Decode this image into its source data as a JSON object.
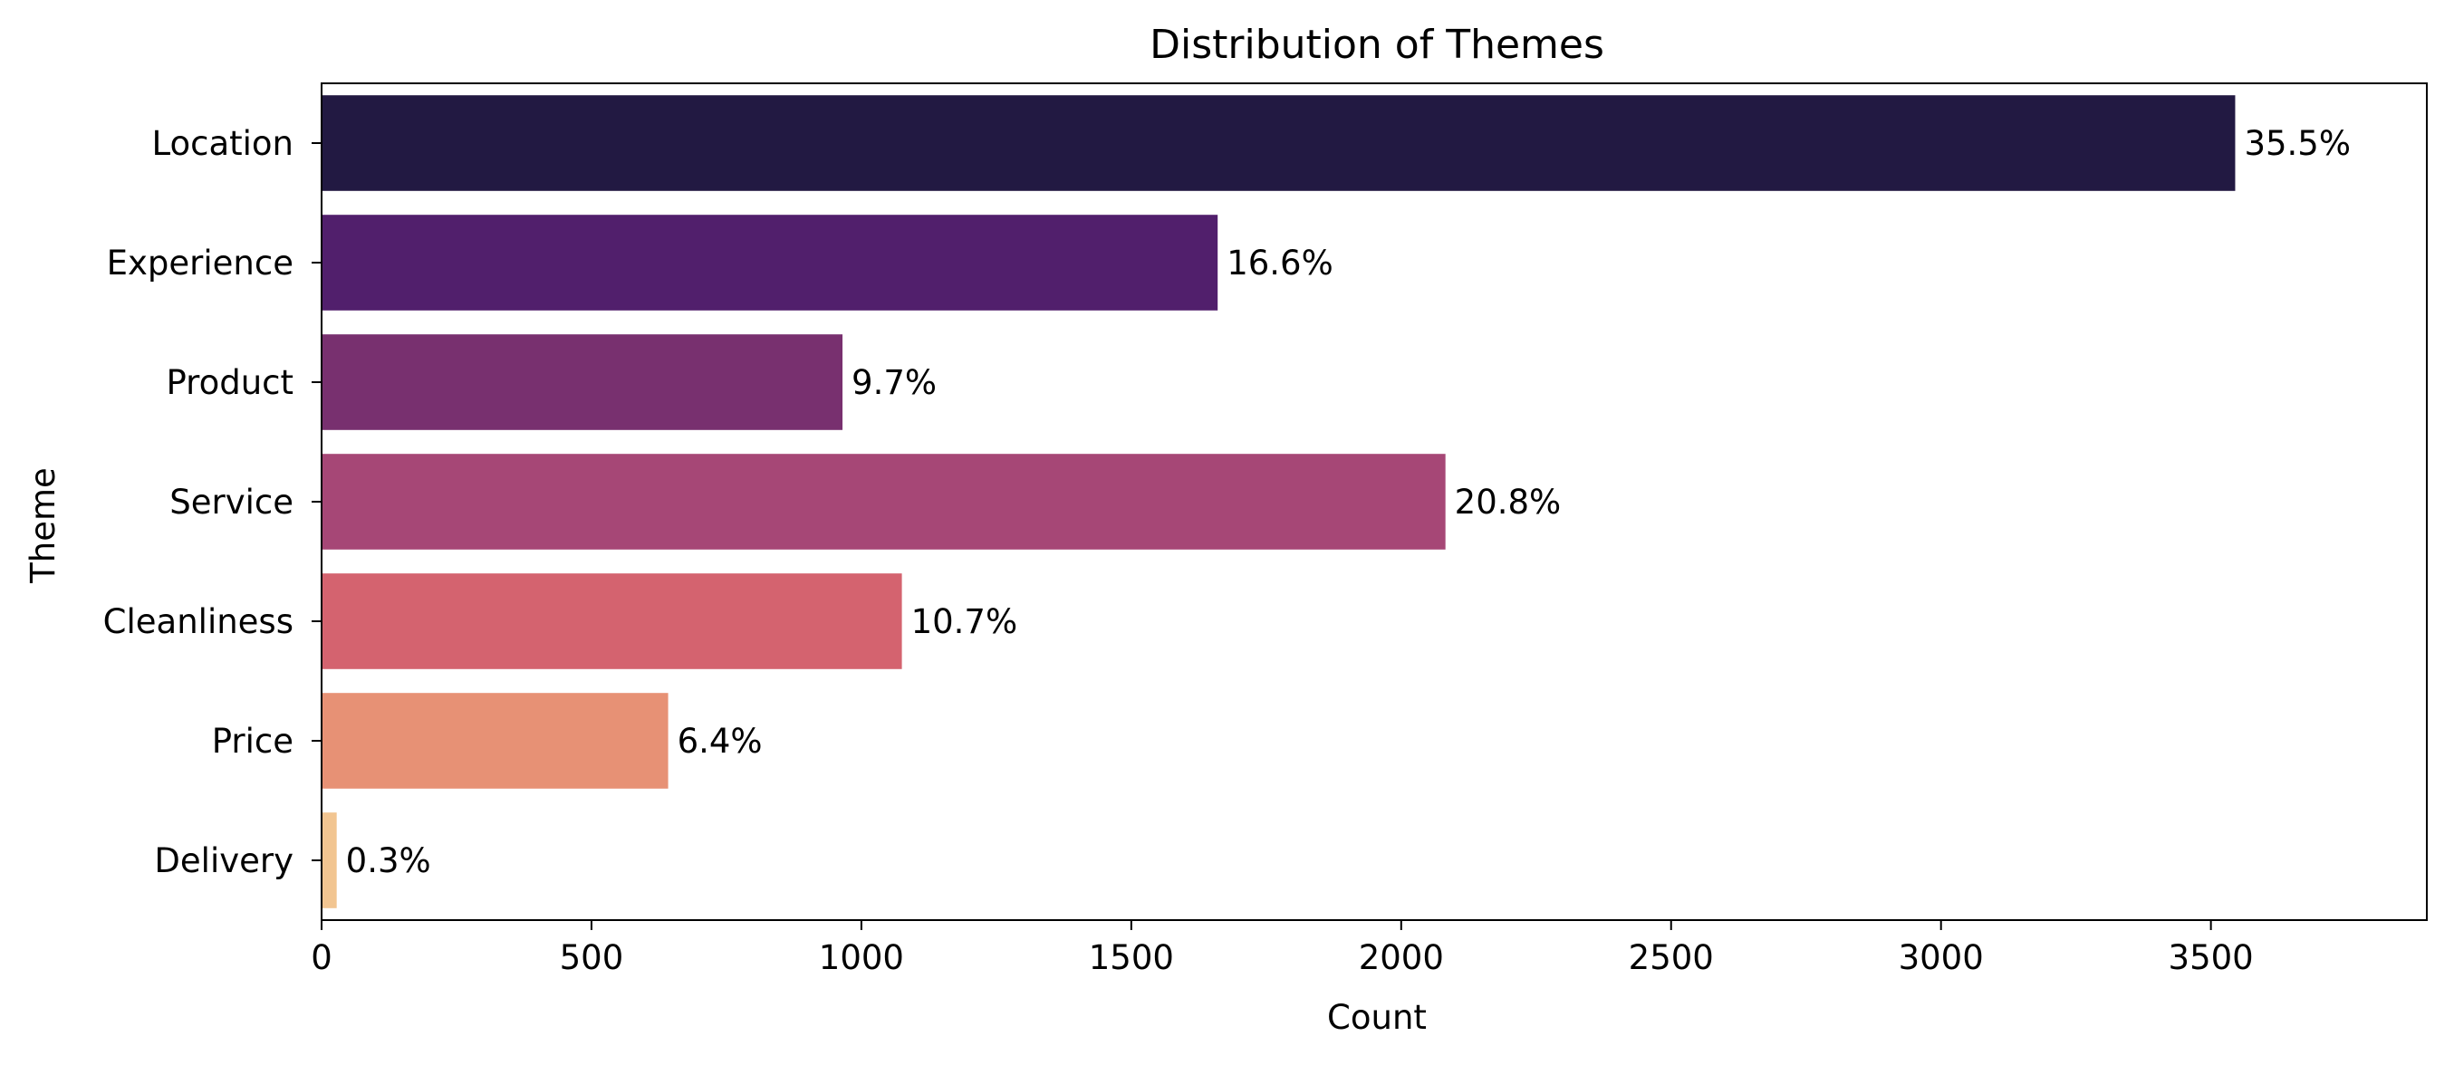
{
  "chart_data": {
    "type": "bar",
    "orientation": "horizontal",
    "title": "Distribution of Themes",
    "xlabel": "Count",
    "ylabel": "Theme",
    "categories": [
      "Location",
      "Experience",
      "Product",
      "Service",
      "Cleanliness",
      "Price",
      "Delivery"
    ],
    "values": [
      3545,
      1660,
      965,
      2082,
      1075,
      642,
      28
    ],
    "data_labels": [
      "35.5%",
      "16.6%",
      "9.7%",
      "20.8%",
      "10.7%",
      "6.4%",
      "0.3%"
    ],
    "colors": [
      "#221942",
      "#511f6c",
      "#78306f",
      "#a64776",
      "#d4636f",
      "#e79175",
      "#f2c591"
    ],
    "xlim": [
      0,
      3900
    ],
    "xticks": [
      0,
      500,
      1000,
      1500,
      2000,
      2500,
      3000,
      3500
    ],
    "xtick_labels": [
      "0",
      "500",
      "1000",
      "1500",
      "2000",
      "2500",
      "3000",
      "3500"
    ],
    "grid": false,
    "legend": "none"
  }
}
